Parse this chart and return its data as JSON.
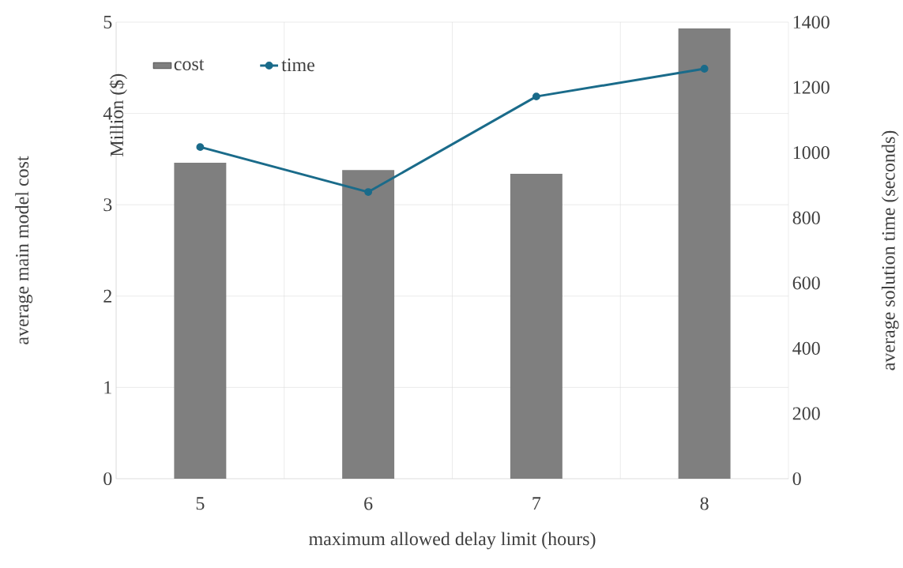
{
  "chart_data": {
    "type": "bar",
    "xlabel": "maximum allowed delay limit (hours)",
    "ylabel": "average main model cost",
    "y2label": "average solution time (seconds)",
    "annotations": [
      "Million ($)"
    ],
    "categories": [
      "5",
      "6",
      "7",
      "8"
    ],
    "series": [
      {
        "name": "cost",
        "color": "#7f7f7f",
        "values": [
          3.46,
          3.38,
          3.34,
          4.93
        ]
      },
      {
        "name": "time",
        "type": "line",
        "axis": "y2",
        "color": "#1a6b8a",
        "marker": "circle",
        "values": [
          1017,
          879,
          1172,
          1257
        ]
      }
    ],
    "ylim": [
      0,
      5
    ],
    "yticks": [
      0,
      1,
      2,
      3,
      4,
      5
    ],
    "y2lim": [
      0,
      1400
    ],
    "y2ticks": [
      0,
      200,
      400,
      600,
      800,
      1000,
      1200,
      1400
    ],
    "grid": true,
    "legend": "top left"
  }
}
